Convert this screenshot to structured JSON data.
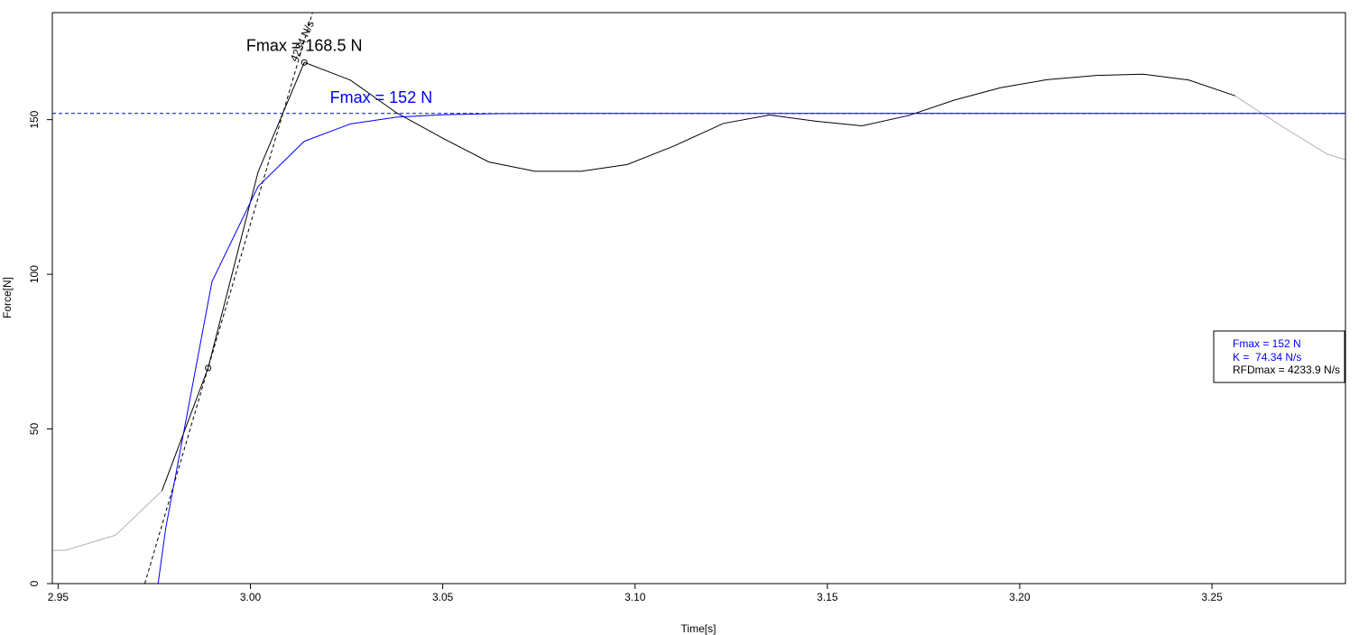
{
  "chart_data": {
    "type": "line",
    "xlabel": "Time[s]",
    "ylabel": "Force[N]",
    "xlim": [
      2.9485,
      3.2847
    ],
    "ylim": [
      0,
      184.6
    ],
    "xticks": [
      2.95,
      3.0,
      3.05,
      3.1,
      3.15,
      3.2,
      3.25
    ],
    "xtick_labels": [
      "2.95",
      "3.00",
      "3.05",
      "3.10",
      "3.15",
      "3.20",
      "3.25"
    ],
    "yticks": [
      0,
      50,
      100,
      150
    ],
    "ytick_labels": [
      "0",
      "50",
      "100",
      "150"
    ],
    "grid": false,
    "colors": {
      "raw": "#000000",
      "raw_outside": "#b3b3b3",
      "model": "#0000ff",
      "tangent": "#000000",
      "fmax_model_line": "#0000ff"
    },
    "series": [
      {
        "color": "#b3b3b3",
        "x": [
          2.9485,
          2.952,
          2.965,
          2.977
        ],
        "y": [
          10.7,
          10.8,
          15.7,
          30.0
        ]
      },
      {
        "color": "#000000",
        "x": [
          2.977,
          2.989,
          3.002,
          3.014,
          3.026,
          3.038,
          3.05,
          3.062,
          3.074,
          3.086,
          3.098,
          3.11,
          3.123,
          3.135,
          3.147,
          3.159,
          3.171,
          3.183,
          3.195,
          3.207,
          3.22,
          3.232,
          3.244,
          3.256
        ],
        "y": [
          30.0,
          69.7,
          133.1,
          168.5,
          162.8,
          152.2,
          144.0,
          136.3,
          133.3,
          133.3,
          135.5,
          141.4,
          148.8,
          151.5,
          149.5,
          148.0,
          151.3,
          156.3,
          160.3,
          162.9,
          164.3,
          164.7,
          162.8,
          157.7
        ]
      },
      {
        "color": "#b3b3b3",
        "x": [
          3.256,
          3.268,
          3.28,
          3.2847
        ],
        "y": [
          157.7,
          148.0,
          138.8,
          137.0
        ]
      },
      {
        "color": "#0000ff",
        "x": [
          2.976,
          2.978,
          2.99,
          3.002,
          3.014,
          3.026,
          3.038,
          3.05,
          3.062,
          3.074,
          3.1,
          3.15,
          3.2,
          3.25,
          3.2847
        ],
        "y": [
          0,
          18.0,
          97.6,
          128.4,
          143.0,
          148.6,
          150.8,
          151.6,
          151.9,
          152.0,
          152.0,
          152.0,
          152.0,
          152.0,
          152.0
        ]
      }
    ],
    "points": [
      {
        "x": 2.989,
        "y": 69.7
      },
      {
        "x": 3.014,
        "y": 168.5
      }
    ],
    "tangent": {
      "slope": 4234,
      "x0": 2.989,
      "y0": 69.7
    },
    "hline": {
      "y": 152.0
    },
    "annotations": [
      {
        "text": "Fmax = 168.5 N",
        "x": 3.014,
        "y": 172.2,
        "color": "#000000"
      },
      {
        "text": "Fmax = 152 N",
        "x": 3.034,
        "y": 155.5,
        "color": "#0000ff"
      },
      {
        "text": "4234 N/s",
        "x": 3.012,
        "y": 168.5,
        "rotate": -66,
        "color": "#000000"
      }
    ],
    "legend": {
      "position": "right",
      "entries": [
        {
          "text": "Fmax = 152 N",
          "color": "#0000ff"
        },
        {
          "text": "K =  74.34 N/s",
          "color": "#0000ff"
        },
        {
          "text": "RFDmax = 4233.9 N/s",
          "color": "#000000"
        }
      ]
    }
  }
}
